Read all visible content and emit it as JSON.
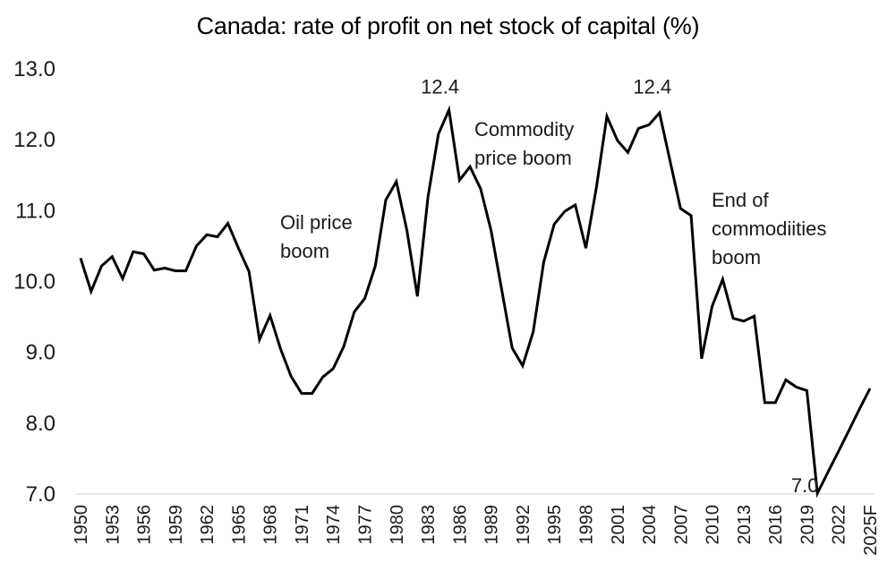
{
  "chart_data": {
    "type": "line",
    "title": "Canada: rate of profit on net stock of capital (%)",
    "xlabel": "",
    "ylabel": "",
    "ylim": [
      7.0,
      13.0
    ],
    "yticks": [
      "7.0",
      "8.0",
      "9.0",
      "10.0",
      "11.0",
      "12.0",
      "13.0"
    ],
    "grid": false,
    "legend": "none",
    "x": [
      "1950",
      "1951",
      "1952",
      "1953",
      "1954",
      "1955",
      "1956",
      "1957",
      "1958",
      "1959",
      "1960",
      "1961",
      "1962",
      "1963",
      "1964",
      "1965",
      "1966",
      "1967",
      "1968",
      "1969",
      "1970",
      "1971",
      "1972",
      "1973",
      "1974",
      "1975",
      "1976",
      "1977",
      "1978",
      "1979",
      "1980",
      "1981",
      "1982",
      "1983",
      "1984",
      "1985",
      "1986",
      "1987",
      "1988",
      "1989",
      "1990",
      "1991",
      "1992",
      "1993",
      "1994",
      "1995",
      "1996",
      "1997",
      "1998",
      "1999",
      "2000",
      "2001",
      "2002",
      "2003",
      "2004",
      "2005",
      "2006",
      "2007",
      "2008",
      "2009",
      "2010",
      "2011",
      "2012",
      "2013",
      "2014",
      "2015",
      "2016",
      "2017",
      "2018",
      "2019",
      "2020",
      "2021",
      "2022",
      "2023",
      "2024",
      "2025F"
    ],
    "xticks": [
      "1950",
      "1953",
      "1956",
      "1959",
      "1962",
      "1965",
      "1968",
      "1971",
      "1974",
      "1977",
      "1980",
      "1983",
      "1986",
      "1989",
      "1992",
      "1995",
      "1998",
      "2001",
      "2004",
      "2007",
      "2010",
      "2013",
      "2016",
      "2019",
      "2022",
      "2025F"
    ],
    "series": [
      {
        "name": "Rate of profit",
        "color": "#000000",
        "values": [
          10.33,
          9.86,
          10.22,
          10.35,
          10.04,
          10.42,
          10.39,
          10.16,
          10.19,
          10.15,
          10.15,
          10.5,
          10.66,
          10.63,
          10.82,
          10.47,
          10.14,
          9.18,
          9.52,
          9.05,
          8.66,
          8.42,
          8.42,
          8.65,
          8.77,
          9.08,
          9.57,
          9.76,
          10.22,
          11.15,
          11.41,
          10.72,
          9.79,
          11.19,
          12.08,
          12.42,
          11.43,
          11.62,
          11.31,
          10.72,
          9.89,
          9.06,
          8.81,
          9.29,
          10.27,
          10.81,
          10.99,
          11.08,
          10.47,
          11.32,
          12.33,
          11.99,
          11.82,
          12.16,
          12.21,
          12.38,
          11.7,
          11.03,
          10.93,
          8.91,
          9.65,
          10.03,
          9.48,
          9.44,
          9.51,
          8.29,
          8.29,
          8.61,
          8.51,
          8.46,
          7.01,
          7.31,
          7.6,
          7.9,
          8.2,
          8.49
        ]
      }
    ],
    "data_labels": [
      {
        "x": "1985",
        "y": 12.4,
        "text": "12.4"
      },
      {
        "x": "2005",
        "y": 12.4,
        "text": "12.4"
      },
      {
        "x": "2020",
        "y": 7.0,
        "text": "7.0"
      }
    ],
    "annotations": [
      {
        "x": "1969",
        "y": 10.9,
        "lines": [
          "Oil price",
          "boom"
        ]
      },
      {
        "x": "1988",
        "y": 12.2,
        "lines": [
          "Commodity",
          "price boom"
        ]
      },
      {
        "x": "2011",
        "y": 11.3,
        "lines": [
          "End of",
          "commodiities",
          "boom"
        ]
      }
    ]
  }
}
